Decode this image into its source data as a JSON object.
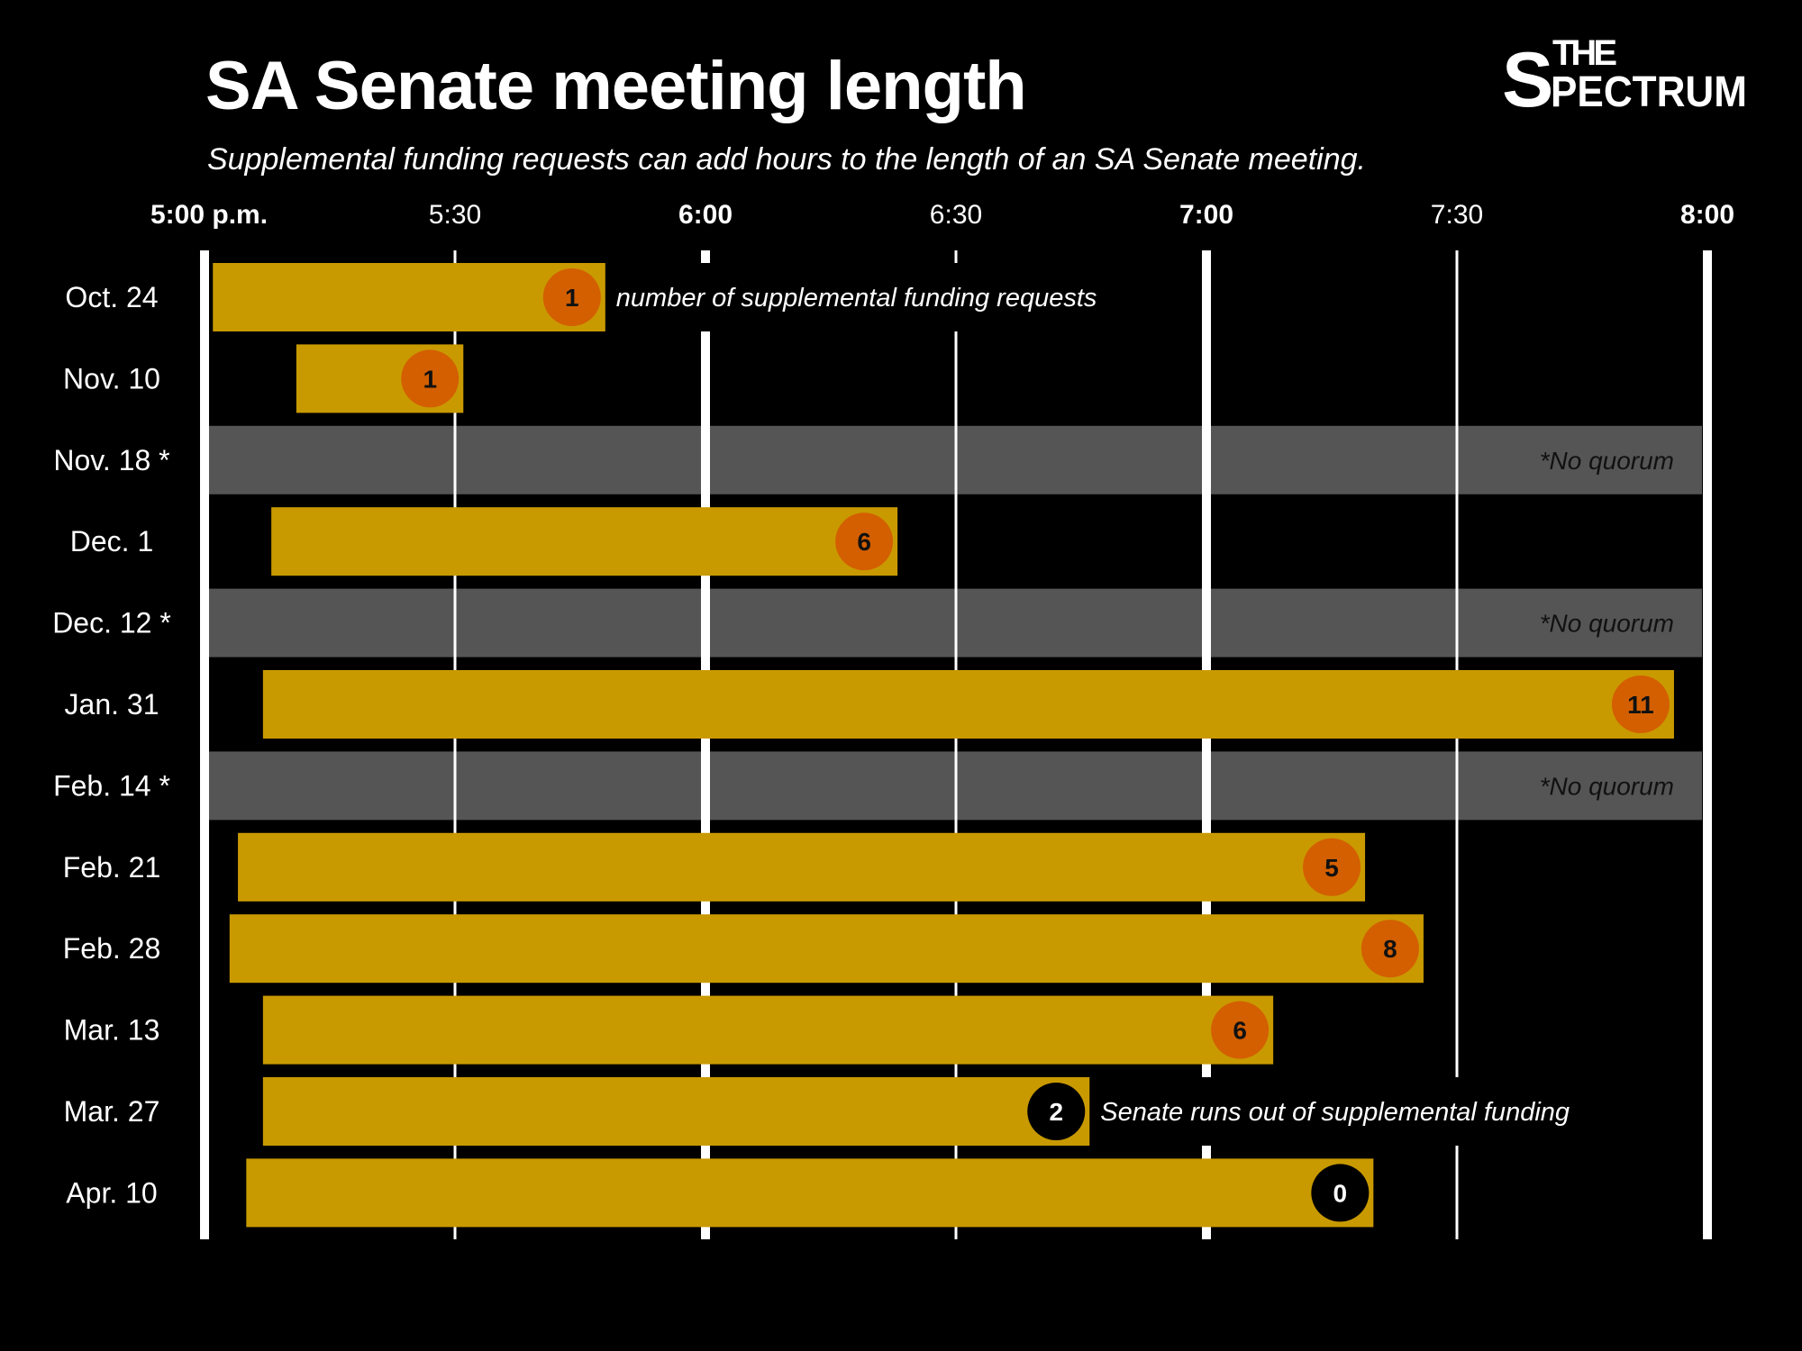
{
  "logo_text": "THE SPECTRUM",
  "colors": {
    "background": "#000000",
    "bar": "#c99a00",
    "circle": "#d35f00",
    "circle_zero": "#000000",
    "no_quorum_band": "#555555",
    "grid": "#ffffff"
  },
  "chart_data": {
    "type": "bar",
    "orientation": "horizontal-range",
    "title": "SA Senate meeting length",
    "subtitle": "Supplemental funding requests can add hours to the length of an SA Senate meeting.",
    "x_ticks": [
      "5:00 p.m.",
      "5:30",
      "6:00",
      "6:30",
      "7:00",
      "7:30",
      "8:00"
    ],
    "xlim": [
      "17:00",
      "20:00"
    ],
    "grid": true,
    "annotations": {
      "requests_label": "number of supplemental funding requests",
      "runs_out": "Senate runs out of supplemental funding",
      "no_quorum": "*No quorum"
    },
    "meetings": [
      {
        "date": "Oct. 24",
        "start": "17:01",
        "end": "17:48",
        "requests": "1"
      },
      {
        "date": "Nov. 10",
        "start": "17:11",
        "end": "17:31",
        "requests": "1"
      },
      {
        "date": "Nov. 18 *",
        "no_quorum": true
      },
      {
        "date": "Dec. 1",
        "start": "17:08",
        "end": "18:23",
        "requests": "6"
      },
      {
        "date": "Dec. 12 *",
        "no_quorum": true
      },
      {
        "date": "Jan. 31",
        "start": "17:07",
        "end": "19:56",
        "requests": "11"
      },
      {
        "date": "Feb. 14 *",
        "no_quorum": true
      },
      {
        "date": "Feb. 21",
        "start": "17:04",
        "end": "19:19",
        "requests": "5"
      },
      {
        "date": "Feb. 28",
        "start": "17:03",
        "end": "19:26",
        "requests": "8"
      },
      {
        "date": "Mar. 13",
        "start": "17:07",
        "end": "19:08",
        "requests": "6"
      },
      {
        "date": "Mar. 27",
        "start": "17:07",
        "end": "18:46",
        "requests": "2"
      },
      {
        "date": "Apr. 10",
        "start": "17:05",
        "end": "19:20",
        "requests": "0"
      }
    ]
  }
}
